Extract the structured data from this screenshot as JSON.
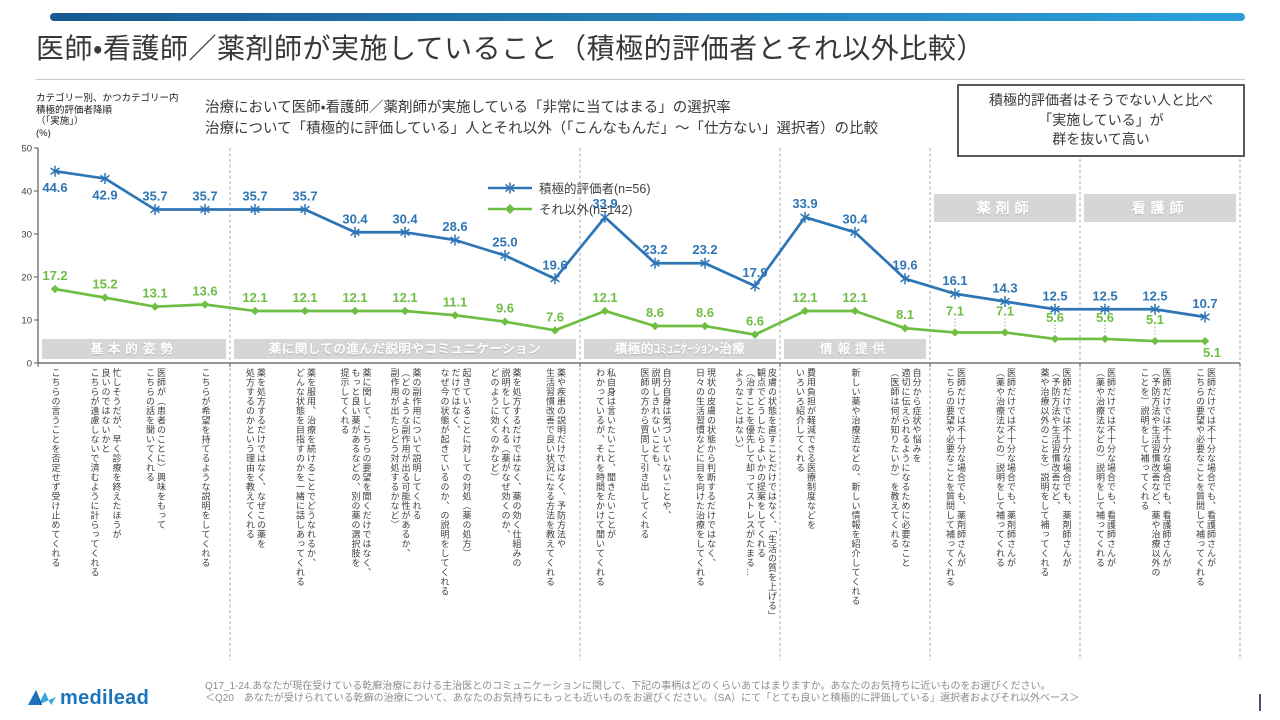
{
  "header": {
    "title": "医師・看護師／薬剤師が実施していること（積極的評価者とそれ以外比較）",
    "subtitle_line1": "治療において医師・看護師／薬剤師が実施している「非常に当てはまる」の選択率",
    "subtitle_line2": "治療について「積極的に評価している」人とそれ以外（「こんなもんだ」～「仕方ない」選択者）の比較",
    "axis_note": "カテゴリー別、かつカテゴリー内\n積極的評価者降順\n（「実施」）\n(%)",
    "note_box": "積極的評価者はそうでない人と比べ\n「実施している」が\n群を抜いて高い"
  },
  "colors": {
    "accent_blue": "#2E75B6",
    "series_blue": "#2E75B6",
    "series_green": "#6FBE44",
    "band_gray": "#D6D6D6",
    "divider_gray": "#ABABAB"
  },
  "chart_data": {
    "type": "line",
    "ylim": [
      0,
      50
    ],
    "yticks": [
      0,
      10,
      20,
      30,
      40,
      50
    ],
    "grid": false,
    "legend_position": "top-center",
    "sections": [
      {
        "name": "基本的姿勢",
        "count": 4,
        "band_position": "bottom"
      },
      {
        "name": "薬に関しての進んだ説明やコミュニケーション",
        "count": 7,
        "band_position": "bottom"
      },
      {
        "name": "積極的ｺﾐｭﾆｹｰｼｮﾝ・治療",
        "count": 4,
        "band_position": "bottom"
      },
      {
        "name": "情報提供",
        "count": 3,
        "band_position": "bottom"
      },
      {
        "name": "薬剤師",
        "count": 3,
        "band_position": "top"
      },
      {
        "name": "看護師",
        "count": 3,
        "band_position": "top"
      }
    ],
    "categories": [
      "こちらの言うことを否定せず受け止めてくれる",
      "忙しそうだが、早く診療を終えたほうが\n良いのではないかと\nこちらが遠慮しないで済むように計らってくれる",
      "医師が（患者のことに）興味をもって\nこちらの話を聞いてくれる",
      "こちらが希望を持てるような説明をしてくれる",
      "薬を処方するだけではなく、なぜこの薬を\n処方するのかという理由を教えてくれる",
      "薬を服用、治療を続けることでどうなれるか、\nどんな状態を目指すのかを一緒に話しあってくれる",
      "薬に関して、こちらの要望を聞くだけではなく、\nもっと良い薬があるなどの、別の薬の選択肢を\n提示してくれる",
      "薬の副作用について説明してくれる\n（どのような副作用が出る可能性があるか、\n副作用が出たらどう対処するかなど）",
      "起きていることに対しての対処（薬の処方）\nだけではなく、\nなぜ今の状態が起きているのか、の説明をしてくれる",
      "薬を処方するだけではなく、薬の効く仕組みの\n説明をしてくれる（薬がなぜ効くのか、\nどのように効くのかなど）",
      "薬や疾患の説明だけではなく、予防方法や\n生活習慣改善で良い状況になる方法を教えてくれる",
      "私自身は言いたいこと、聞きたいことが\nわかっているが、それを時間をかけて聞いてくれる",
      "自分自身は気づいていないことや、\n説明しきれないことも、\n医師の方から質問して引き出してくれる",
      "現状の皮膚の状態から判断するだけではなく、\n日々の生活習慣などに目を向けた治療をしてくれる",
      "皮膚の状態を直すことだけではなく、「生活の質を上げる」\n観点でどうしたらよいかの提案をしてくれる\n（治すことを優先して却ってストレスがたまる…\nようなことはない）",
      "費用負担が軽減できる医療制度などを\nいろいろ紹介してくれる",
      "新しい薬や治療法などの、新しい情報を紹介してくれる",
      "自分から症状や悩みを\n適切に伝えられるようになるために必要なこと\n（医師は何が知りたいか）を教えてくれる",
      "医師だけでは不十分な場合でも、薬剤師さんが\nこちらの要望や必要なことを質問して補ってくれる",
      "医師だけでは不十分な場合でも、薬剤師さんが\n（薬や治療法などの）説明をして補ってくれる",
      "医師だけでは不十分な場合でも、薬剤師さんが\n（予防方法や生活習慣改善など、\n薬や治療以外のことを）説明をして補ってくれる",
      "医師だけでは不十分な場合でも、看護師さんが\n（薬や治療法などの）説明をして補ってくれる",
      "医師だけでは不十分な場合でも、看護師さんが\n（予防方法や生活習慣改善など、薬や治療以外の\nことを）説明をして補ってくれる",
      "医師だけでは不十分な場合でも、看護師さんが\nこちらの要望や必要なことを質問して補ってくれる"
    ],
    "series": [
      {
        "name": "積極的評価者(n=56)",
        "color": "#2E75B6",
        "marker": "asterisk",
        "values": [
          44.6,
          42.9,
          35.7,
          35.7,
          35.7,
          35.7,
          30.4,
          30.4,
          28.6,
          25.0,
          19.6,
          33.9,
          23.2,
          23.2,
          17.9,
          33.9,
          30.4,
          19.6,
          16.1,
          14.3,
          12.5,
          12.5,
          12.5,
          10.7
        ]
      },
      {
        "name": "それ以外(n=142)",
        "color": "#6FBE44",
        "marker": "diamond",
        "values": [
          17.2,
          15.2,
          13.1,
          13.6,
          12.1,
          12.1,
          12.1,
          12.1,
          11.1,
          9.6,
          7.6,
          12.1,
          8.6,
          8.6,
          6.6,
          12.1,
          12.1,
          8.1,
          7.1,
          7.1,
          5.6,
          5.6,
          5.1,
          5.1
        ]
      }
    ]
  },
  "footer": {
    "logo_text": "medilead",
    "source_line1": "Q17_1-24.あなたが現在受けている乾癬治療における主治医とのコミュニケーションに関して、下記の事柄はどのくらいあてはまりますか。あなたのお気持ちに近いものをお選びください。",
    "source_line2": "＜Q20　あなたが受けられている乾癬の治療について、あなたのお気持ちにもっとも近いものをお選びください。（SA）にて「とても良いと積極的に評価している」選択者およびそれ以外ベース＞"
  }
}
